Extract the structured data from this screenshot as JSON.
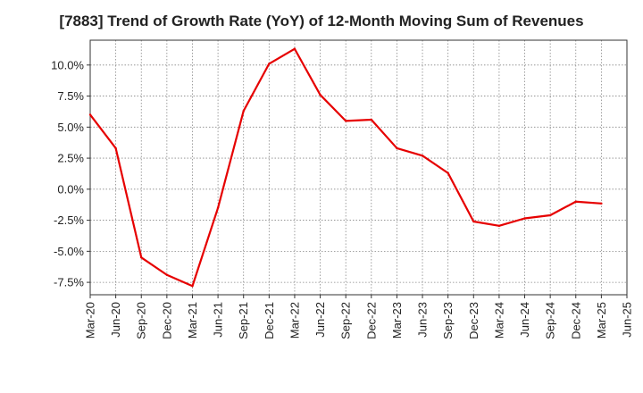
{
  "chart_data": {
    "type": "line",
    "title": "[7883]  Trend of Growth Rate (YoY) of 12-Month Moving Sum of Revenues",
    "xlabel": "",
    "ylabel": "",
    "x_ticks": [
      "Mar-20",
      "Jun-20",
      "Sep-20",
      "Dec-20",
      "Mar-21",
      "Jun-21",
      "Sep-21",
      "Dec-21",
      "Mar-22",
      "Jun-22",
      "Sep-22",
      "Dec-22",
      "Mar-23",
      "Jun-23",
      "Sep-23",
      "Dec-23",
      "Mar-24",
      "Jun-24",
      "Sep-24",
      "Dec-24",
      "Mar-25",
      "Jun-25"
    ],
    "y_ticks": [
      10.0,
      7.5,
      5.0,
      2.5,
      0.0,
      -2.5,
      -5.0,
      -7.5
    ],
    "y_tick_labels": [
      "10.0%",
      "7.5%",
      "5.0%",
      "2.5%",
      "0.0%",
      "-2.5%",
      "-5.0%",
      "-7.5%"
    ],
    "ylim": [
      -8.5,
      12.0
    ],
    "grid": true,
    "series": [
      {
        "color": "#e60000",
        "x": [
          "Mar-20",
          "Jun-20",
          "Sep-20",
          "Dec-20",
          "Mar-21",
          "Jun-21",
          "Sep-21",
          "Dec-21",
          "Mar-22",
          "Jun-22",
          "Sep-22",
          "Dec-22",
          "Mar-23",
          "Jun-23",
          "Sep-23",
          "Dec-23",
          "Mar-24",
          "Jun-24",
          "Sep-24",
          "Dec-24",
          "Mar-25"
        ],
        "values": [
          6.0,
          3.3,
          -5.5,
          -6.9,
          -7.8,
          -1.5,
          6.3,
          10.1,
          11.3,
          7.6,
          5.5,
          5.6,
          3.3,
          2.7,
          1.3,
          -2.6,
          -2.95,
          -2.35,
          -2.1,
          -1.0,
          -1.15
        ]
      }
    ]
  }
}
